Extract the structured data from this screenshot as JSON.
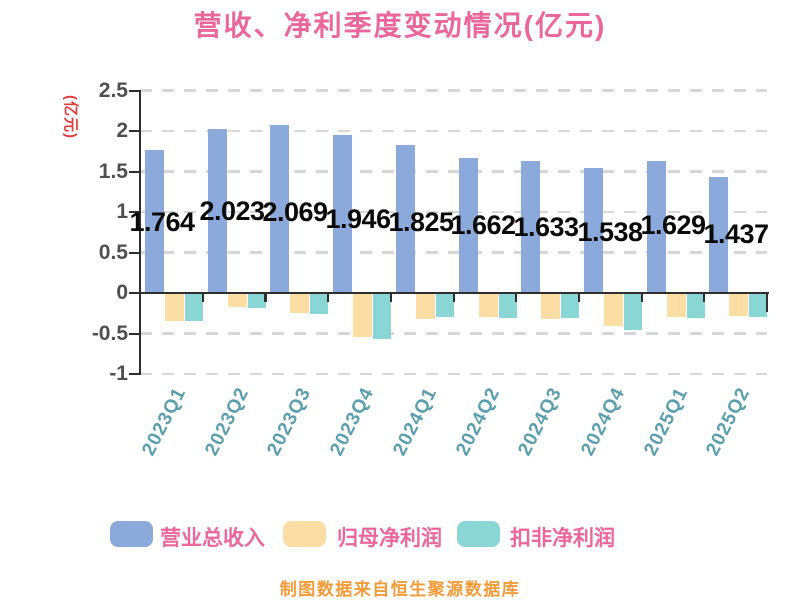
{
  "title": {
    "text": "营收、净利季度变动情况(亿元)",
    "color": "#e9679b"
  },
  "y_axis": {
    "name": "(亿元)",
    "name_color": "#e03c3c",
    "tick_color": "#4f4f4f",
    "ticks": [
      "2.5",
      "2",
      "1.5",
      "1",
      "0.5",
      "0",
      "-0.5",
      "-1"
    ],
    "tick_values": [
      2.5,
      2,
      1.5,
      1,
      0.5,
      0,
      -0.5,
      -1
    ]
  },
  "x_axis": {
    "label_color": "#5b9fae",
    "categories": [
      "2023Q1",
      "2023Q2",
      "2023Q3",
      "2023Q4",
      "2024Q1",
      "2024Q2",
      "2024Q3",
      "2024Q4",
      "2025Q1",
      "2025Q2"
    ]
  },
  "chart_data": {
    "type": "bar",
    "title": "营收、净利季度变动情况(亿元)",
    "ylabel": "(亿元)",
    "categories": [
      "2023Q1",
      "2023Q2",
      "2023Q3",
      "2023Q4",
      "2024Q1",
      "2024Q2",
      "2024Q3",
      "2024Q4",
      "2025Q1",
      "2025Q2"
    ],
    "series": [
      {
        "name": "营业总收入",
        "color": "#8ba9db",
        "values": [
          1.764,
          2.023,
          2.069,
          1.946,
          1.825,
          1.662,
          1.633,
          1.538,
          1.629,
          1.437
        ],
        "data_labels": [
          "1.764",
          "2.023",
          "2.069",
          "1.946",
          "1.825",
          "1.662",
          "1.633",
          "1.538",
          "1.629",
          "1.437"
        ],
        "label_color": "#0a0a0a"
      },
      {
        "name": "归母净利润",
        "color": "#fcdda4",
        "values": [
          -0.33,
          -0.16,
          -0.24,
          -0.53,
          -0.31,
          -0.29,
          -0.31,
          -0.4,
          -0.29,
          -0.27
        ]
      },
      {
        "name": "扣非净利润",
        "color": "#89d6d5",
        "values": [
          -0.33,
          -0.17,
          -0.25,
          -0.56,
          -0.29,
          -0.3,
          -0.3,
          -0.45,
          -0.3,
          -0.28
        ]
      }
    ],
    "ylim": [
      -1,
      2.5
    ],
    "y_interval": 0.5,
    "grid": "horizontal-dashed",
    "gridline_color": "#d7d7d7",
    "axis_line_color": "#2e2e2e",
    "legend_position": "bottom",
    "layout": {
      "value_label_x": [
        162,
        232,
        295,
        358,
        421,
        483,
        546,
        610,
        673,
        736
      ],
      "value_label_y": [
        221,
        210,
        211,
        218,
        221,
        224,
        226,
        231,
        224,
        233
      ]
    }
  },
  "legend": {
    "text_color": "#e9679b",
    "items": [
      {
        "label": "营业总收入",
        "color": "#8ba9db"
      },
      {
        "label": "归母净利润",
        "color": "#fcdda4"
      },
      {
        "label": "扣非净利润",
        "color": "#89d6d5"
      }
    ]
  },
  "caption": {
    "text": "制图数据来自恒生聚源数据库",
    "color": "#f29b38"
  }
}
